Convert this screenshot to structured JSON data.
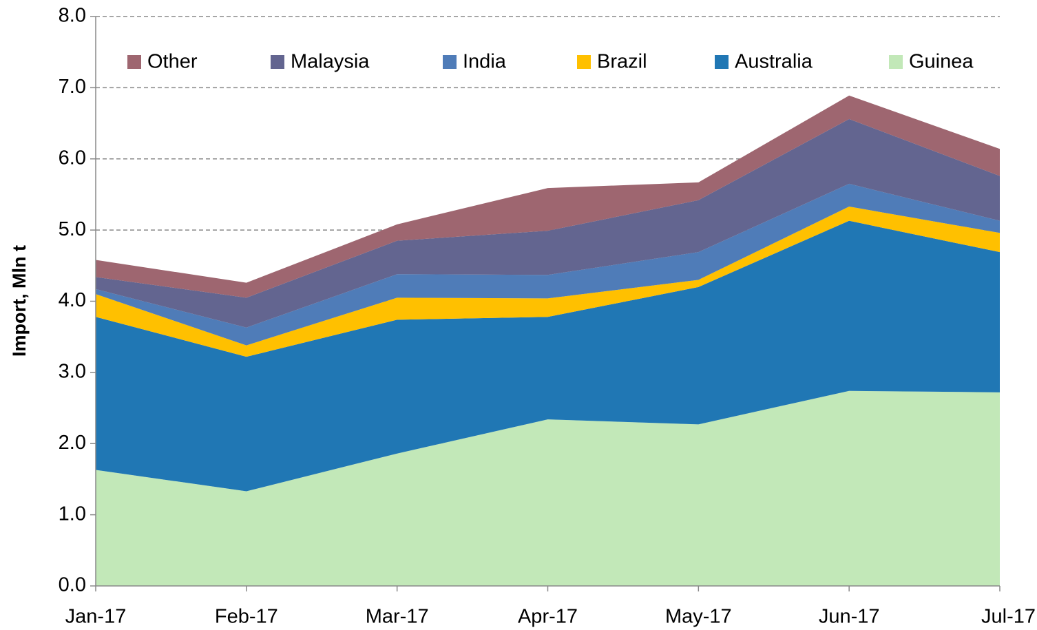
{
  "chart_data": {
    "type": "stacked_area",
    "y_label": "Import, Mln t",
    "categories": [
      "Jan-17",
      "Feb-17",
      "Mar-17",
      "Apr-17",
      "May-17",
      "Jun-17",
      "Jul-17"
    ],
    "series": [
      {
        "name": "Other",
        "color": "#9e6670",
        "values": [
          0.24,
          0.21,
          0.23,
          0.6,
          0.25,
          0.33,
          0.38
        ]
      },
      {
        "name": "Malaysia",
        "color": "#636590",
        "values": [
          0.17,
          0.42,
          0.47,
          0.62,
          0.73,
          0.91,
          0.63
        ]
      },
      {
        "name": "India",
        "color": "#4f7cb8",
        "values": [
          0.07,
          0.25,
          0.33,
          0.33,
          0.39,
          0.32,
          0.17
        ]
      },
      {
        "name": "Brazil",
        "color": "#ffc000",
        "values": [
          0.32,
          0.16,
          0.31,
          0.26,
          0.1,
          0.2,
          0.27
        ]
      },
      {
        "name": "Australia",
        "color": "#2077b4",
        "values": [
          2.15,
          1.89,
          1.88,
          1.44,
          1.93,
          2.39,
          1.97
        ]
      },
      {
        "name": "Guinea",
        "color": "#c2e8b8",
        "values": [
          1.63,
          1.33,
          1.86,
          2.34,
          2.27,
          2.74,
          2.72
        ]
      }
    ],
    "ylim": [
      0,
      8
    ],
    "yticks": [
      {
        "value": 0,
        "label": "0.0"
      },
      {
        "value": 1,
        "label": "1.0"
      },
      {
        "value": 2,
        "label": "2.0"
      },
      {
        "value": 3,
        "label": "3.0"
      },
      {
        "value": 4,
        "label": "4.0"
      },
      {
        "value": 5,
        "label": "5.0"
      },
      {
        "value": 6,
        "label": "6.0"
      },
      {
        "value": 7,
        "label": "7.0"
      },
      {
        "value": 8,
        "label": "8.0"
      }
    ],
    "grid": true,
    "legend": "top"
  }
}
